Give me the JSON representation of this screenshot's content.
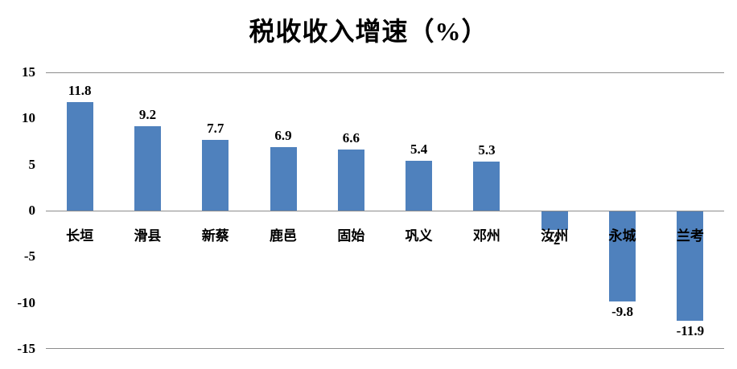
{
  "chart_data": {
    "type": "bar",
    "title": "税收收入增速（%）",
    "categories": [
      "长垣",
      "滑县",
      "新蔡",
      "鹿邑",
      "固始",
      "巩义",
      "邓州",
      "汝州",
      "永城",
      "兰考"
    ],
    "values": [
      11.8,
      9.2,
      7.7,
      6.9,
      6.6,
      5.4,
      5.3,
      -2,
      -9.8,
      -11.9
    ],
    "value_labels": [
      "11.8",
      "9.2",
      "7.7",
      "6.9",
      "6.6",
      "5.4",
      "5.3",
      "-2",
      "-9.8",
      "-11.9"
    ],
    "ylim": [
      -15,
      15
    ],
    "yticks": [
      15,
      10,
      5,
      0,
      -5,
      -10,
      -15
    ],
    "bar_color": "#4F81BD",
    "axis_line_color": "#8c8c8c",
    "xlabel": "",
    "ylabel": "",
    "legend": "none",
    "grid": "off"
  }
}
